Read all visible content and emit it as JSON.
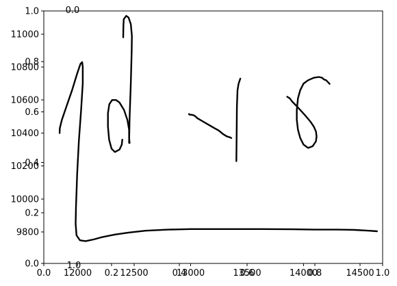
{
  "chart_data": {
    "type": "line",
    "title": "",
    "xlabel": "",
    "ylabel": "",
    "grid": false,
    "line_color": "#000000",
    "axes_sets": [
      {
        "name": "handwriting-axes",
        "xlim": [
          11700,
          14700
        ],
        "ylim": [
          9610,
          11140
        ],
        "xticks": [
          12000,
          12500,
          13000,
          13500,
          14000,
          14500
        ],
        "xtick_labels": [
          "12000",
          "12500",
          "13000",
          "13500",
          "14000",
          "14500"
        ],
        "yticks": [
          9800,
          10000,
          10200,
          10400,
          10600,
          10800,
          11000
        ],
        "ytick_labels": [
          "9800",
          "10000",
          "10200",
          "10400",
          "10600",
          "10800",
          "11000"
        ]
      },
      {
        "name": "empty-axes",
        "xlim": [
          0,
          1
        ],
        "ylim": [
          0,
          1
        ],
        "xticks": [
          0.0,
          0.2,
          0.4,
          0.6,
          0.8,
          1.0
        ],
        "xtick_labels": [
          "0.0",
          "0.2",
          "0.4",
          "0.6",
          "0.8",
          "1.0"
        ],
        "yticks": [
          0.0,
          0.2,
          0.4,
          0.6,
          0.8,
          1.0
        ],
        "ytick_labels": [
          "0.0",
          "0.2",
          "0.4",
          "0.6",
          "0.8",
          "1.0"
        ]
      },
      {
        "name": "inset-axes",
        "xlim": [
          0,
          1
        ],
        "ylim": [
          0,
          1
        ],
        "xticks": [
          0.0,
          1.0
        ],
        "xtick_labels": [
          "0.0",
          "1.0"
        ],
        "yticks": [],
        "ytick_labels": []
      }
    ],
    "series": [
      {
        "stroke": 1,
        "points": [
          [
            11840,
            10400
          ],
          [
            11842,
            10430
          ],
          [
            11860,
            10480
          ],
          [
            11900,
            10560
          ],
          [
            11950,
            10660
          ],
          [
            11995,
            10760
          ],
          [
            12025,
            10820
          ],
          [
            12040,
            10830
          ],
          [
            12045,
            10800
          ],
          [
            12045,
            10700
          ],
          [
            12030,
            10540
          ],
          [
            12010,
            10350
          ],
          [
            11995,
            10150
          ],
          [
            11985,
            9950
          ],
          [
            11982,
            9850
          ],
          [
            11990,
            9780
          ],
          [
            12020,
            9750
          ],
          [
            12070,
            9745
          ],
          [
            12140,
            9755
          ],
          [
            12220,
            9770
          ],
          [
            12330,
            9785
          ],
          [
            12450,
            9797
          ],
          [
            12600,
            9808
          ],
          [
            12800,
            9815
          ],
          [
            13000,
            9818
          ],
          [
            13300,
            9818
          ],
          [
            13600,
            9818
          ],
          [
            13900,
            9817
          ],
          [
            14100,
            9815
          ],
          [
            14300,
            9815
          ],
          [
            14450,
            9813
          ],
          [
            14580,
            9808
          ],
          [
            14650,
            9805
          ]
        ]
      },
      {
        "stroke": 2,
        "points": [
          [
            12395,
            10360
          ],
          [
            12390,
            10330
          ],
          [
            12370,
            10300
          ],
          [
            12330,
            10285
          ],
          [
            12300,
            10305
          ],
          [
            12278,
            10360
          ],
          [
            12268,
            10440
          ],
          [
            12268,
            10520
          ],
          [
            12280,
            10575
          ],
          [
            12305,
            10600
          ],
          [
            12340,
            10600
          ],
          [
            12370,
            10585
          ],
          [
            12410,
            10540
          ],
          [
            12440,
            10480
          ],
          [
            12455,
            10420
          ],
          [
            12455,
            10370
          ],
          [
            12460,
            10340
          ]
        ]
      },
      {
        "stroke": 3,
        "points": [
          [
            12455,
            10340
          ],
          [
            12460,
            10500
          ],
          [
            12470,
            10700
          ],
          [
            12478,
            10900
          ],
          [
            12480,
            10990
          ],
          [
            12470,
            11060
          ],
          [
            12450,
            11100
          ],
          [
            12430,
            11110
          ],
          [
            12408,
            11090
          ],
          [
            12405,
            11050
          ],
          [
            12403,
            10980
          ]
        ]
      },
      {
        "stroke": 4,
        "points": [
          [
            12985,
            10515
          ],
          [
            12990,
            10512
          ],
          [
            13015,
            10510
          ],
          [
            13035,
            10505
          ],
          [
            13060,
            10490
          ],
          [
            13110,
            10470
          ],
          [
            13160,
            10450
          ],
          [
            13210,
            10430
          ],
          [
            13250,
            10415
          ],
          [
            13285,
            10395
          ],
          [
            13320,
            10380
          ],
          [
            13345,
            10375
          ],
          [
            13360,
            10370
          ]
        ]
      },
      {
        "stroke": 5,
        "points": [
          [
            13405,
            10230
          ],
          [
            13406,
            10300
          ],
          [
            13408,
            10420
          ],
          [
            13410,
            10560
          ],
          [
            13415,
            10660
          ],
          [
            13425,
            10700
          ],
          [
            13440,
            10730
          ]
        ]
      },
      {
        "stroke": 6,
        "points": [
          [
            13855,
            10620
          ],
          [
            13860,
            10618
          ],
          [
            13878,
            10610
          ],
          [
            13900,
            10590
          ],
          [
            13930,
            10570
          ],
          [
            13970,
            10540
          ],
          [
            14010,
            10510
          ],
          [
            14060,
            10470
          ],
          [
            14090,
            10440
          ],
          [
            14110,
            10410
          ],
          [
            14115,
            10380
          ],
          [
            14110,
            10350
          ],
          [
            14080,
            10320
          ],
          [
            14040,
            10310
          ],
          [
            14000,
            10330
          ],
          [
            13970,
            10370
          ],
          [
            13950,
            10420
          ],
          [
            13940,
            10480
          ],
          [
            13940,
            10540
          ],
          [
            13950,
            10610
          ],
          [
            13970,
            10660
          ],
          [
            14000,
            10700
          ],
          [
            14040,
            10720
          ],
          [
            14090,
            10735
          ],
          [
            14135,
            10740
          ],
          [
            14165,
            10735
          ],
          [
            14180,
            10725
          ],
          [
            14200,
            10720
          ],
          [
            14220,
            10706
          ],
          [
            14230,
            10698
          ]
        ]
      }
    ]
  }
}
